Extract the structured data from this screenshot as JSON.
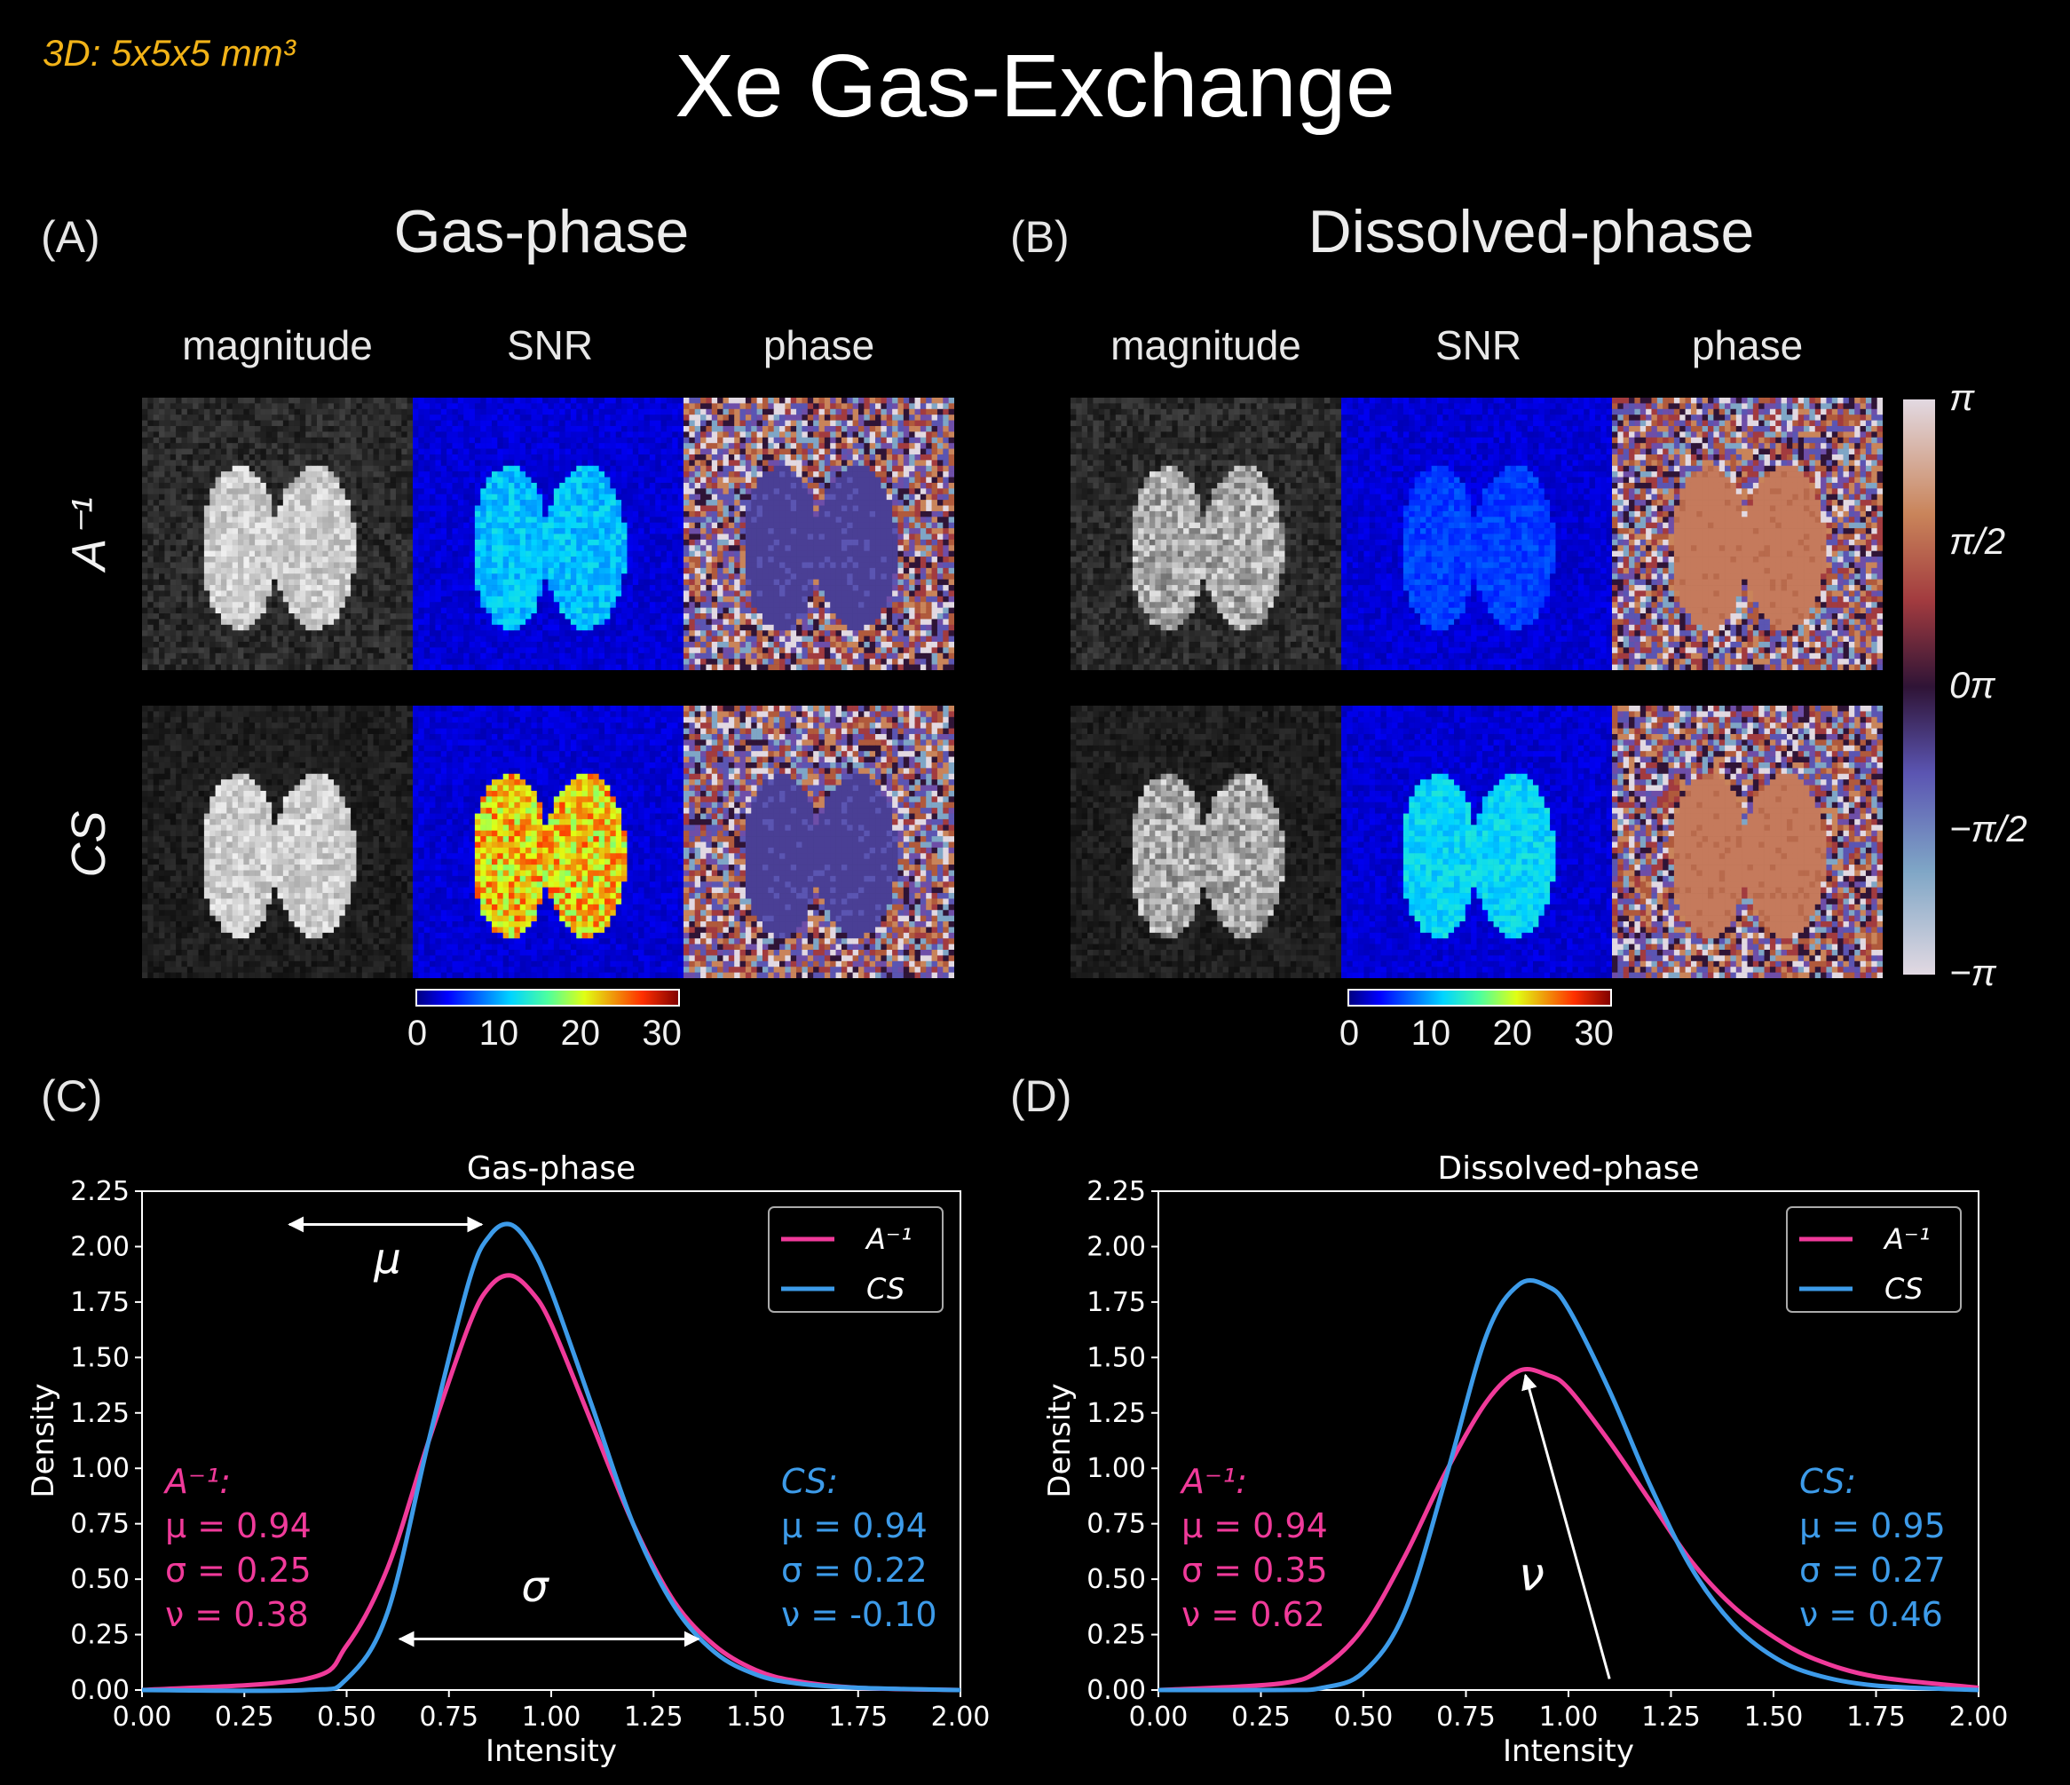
{
  "header": {
    "resolution_label": "3D: 5x5x5 mm³",
    "title": "Xe Gas-Exchange"
  },
  "panels": {
    "A": {
      "letter": "(A)",
      "title": "Gas-phase"
    },
    "B": {
      "letter": "(B)",
      "title": "Dissolved-phase"
    },
    "C": {
      "letter": "(C)"
    },
    "D": {
      "letter": "(D)"
    }
  },
  "image_grid": {
    "column_labels": [
      "magnitude",
      "SNR",
      "phase"
    ],
    "row_labels": [
      "A⁻¹",
      "CS"
    ]
  },
  "snr_colorbar": {
    "ticks": [
      "0",
      "10",
      "20",
      "30"
    ],
    "range": [
      0,
      32
    ]
  },
  "phase_colorbar": {
    "ticks": [
      "π",
      "π/2",
      "0π",
      "−π/2",
      "−π"
    ]
  },
  "chart_data": [
    {
      "type": "line",
      "title": "Gas-phase",
      "xlabel": "Intensity",
      "ylabel": "Density",
      "xlim": [
        0,
        2
      ],
      "ylim": [
        0,
        2.25
      ],
      "xticks": [
        "0.00",
        "0.25",
        "0.50",
        "0.75",
        "1.00",
        "1.25",
        "1.50",
        "1.75",
        "2.00"
      ],
      "yticks": [
        "0.00",
        "0.25",
        "0.50",
        "0.75",
        "1.00",
        "1.25",
        "1.50",
        "1.75",
        "2.00",
        "2.25"
      ],
      "legend_position": "top-right",
      "x": [
        0.0,
        0.4,
        0.5,
        0.6,
        0.7,
        0.8,
        0.85,
        0.9,
        0.95,
        1.0,
        1.1,
        1.2,
        1.3,
        1.4,
        1.5,
        1.6,
        1.75,
        2.0
      ],
      "series": [
        {
          "name": "A⁻¹",
          "color": "#f03a9a",
          "values": [
            0.0,
            0.05,
            0.2,
            0.55,
            1.12,
            1.65,
            1.82,
            1.87,
            1.8,
            1.65,
            1.2,
            0.75,
            0.4,
            0.2,
            0.09,
            0.04,
            0.01,
            0.0
          ]
        },
        {
          "name": "CS",
          "color": "#3d9be9",
          "values": [
            0.0,
            0.0,
            0.05,
            0.35,
            1.12,
            1.85,
            2.05,
            2.1,
            2.0,
            1.8,
            1.28,
            0.75,
            0.38,
            0.17,
            0.07,
            0.03,
            0.01,
            0.0
          ]
        }
      ],
      "annotations": {
        "left": {
          "title": "A⁻¹:",
          "lines": [
            "μ = 0.94",
            "σ = 0.25",
            "ν = 0.38"
          ],
          "color": "#f03a9a"
        },
        "right": {
          "title": "CS:",
          "lines": [
            "μ = 0.94",
            "σ = 0.22",
            "ν = -0.10"
          ],
          "color": "#3d9be9"
        },
        "symbols": [
          "μ",
          "σ"
        ]
      }
    },
    {
      "type": "line",
      "title": "Dissolved-phase",
      "xlabel": "Intensity",
      "ylabel": "Density",
      "xlim": [
        0,
        2
      ],
      "ylim": [
        0,
        2.25
      ],
      "xticks": [
        "0.00",
        "0.25",
        "0.50",
        "0.75",
        "1.00",
        "1.25",
        "1.50",
        "1.75",
        "2.00"
      ],
      "yticks": [
        "0.00",
        "0.25",
        "0.50",
        "0.75",
        "1.00",
        "1.25",
        "1.50",
        "1.75",
        "2.00",
        "2.25"
      ],
      "legend_position": "top-right",
      "x": [
        0.0,
        0.3,
        0.4,
        0.5,
        0.6,
        0.7,
        0.8,
        0.88,
        0.95,
        1.0,
        1.1,
        1.2,
        1.3,
        1.4,
        1.5,
        1.6,
        1.75,
        2.0
      ],
      "series": [
        {
          "name": "A⁻¹",
          "color": "#f03a9a",
          "values": [
            0.0,
            0.03,
            0.1,
            0.28,
            0.6,
            0.98,
            1.3,
            1.44,
            1.42,
            1.36,
            1.12,
            0.85,
            0.58,
            0.38,
            0.24,
            0.14,
            0.06,
            0.01
          ]
        },
        {
          "name": "CS",
          "color": "#3d9be9",
          "values": [
            0.0,
            0.0,
            0.01,
            0.08,
            0.35,
            0.95,
            1.6,
            1.83,
            1.82,
            1.72,
            1.35,
            0.92,
            0.55,
            0.3,
            0.15,
            0.07,
            0.02,
            0.0
          ]
        }
      ],
      "annotations": {
        "left": {
          "title": "A⁻¹:",
          "lines": [
            "μ = 0.94",
            "σ = 0.35",
            "ν = 0.62"
          ],
          "color": "#f03a9a"
        },
        "right": {
          "title": "CS:",
          "lines": [
            "μ = 0.95",
            "σ = 0.27",
            "ν = 0.46"
          ],
          "color": "#3d9be9"
        },
        "symbols": [
          "ν"
        ]
      }
    }
  ]
}
